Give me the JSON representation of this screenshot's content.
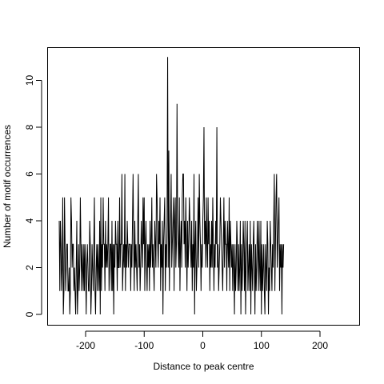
{
  "chart_data": {
    "type": "line",
    "title": "",
    "xlabel": "Distance to peak centre",
    "ylabel": "Number of motif occurrences",
    "xlim": [
      -250,
      250
    ],
    "ylim": [
      0,
      11
    ],
    "xticks": [
      -200,
      -100,
      0,
      100,
      200
    ],
    "yticks": [
      0,
      2,
      4,
      6,
      8,
      10
    ],
    "xtick_labels": [
      "-200",
      "-100",
      "0",
      "100",
      "200"
    ],
    "ytick_labels": [
      "0",
      "2",
      "4",
      "6",
      "8",
      "10"
    ],
    "grid": false,
    "line_color": "#000000",
    "x_start": -245,
    "x_step": 1,
    "values": [
      4,
      1,
      4,
      3,
      1,
      2,
      5,
      0,
      1,
      5,
      3,
      1,
      2,
      3,
      3,
      1,
      1,
      2,
      0,
      1,
      5,
      4,
      2,
      3,
      3,
      1,
      2,
      1,
      0,
      2,
      4,
      0,
      1,
      3,
      1,
      2,
      5,
      3,
      1,
      3,
      2,
      1,
      3,
      1,
      3,
      2,
      0,
      2,
      3,
      2,
      1,
      1,
      4,
      3,
      0,
      1,
      3,
      2,
      1,
      3,
      5,
      1,
      0,
      2,
      3,
      1,
      3,
      2,
      1,
      4,
      0,
      5,
      1,
      3,
      2,
      5,
      3,
      3,
      1,
      4,
      2,
      3,
      2,
      3,
      5,
      1,
      2,
      3,
      3,
      1,
      4,
      1,
      3,
      0,
      3,
      2,
      4,
      3,
      3,
      1,
      4,
      2,
      2,
      5,
      2,
      3,
      3,
      6,
      1,
      2,
      3,
      2,
      6,
      1,
      3,
      2,
      4,
      3,
      2,
      3,
      3,
      3,
      1,
      3,
      2,
      4,
      6,
      3,
      1,
      4,
      2,
      3,
      2,
      1,
      4,
      6,
      2,
      3,
      1,
      2,
      4,
      3,
      2,
      5,
      3,
      5,
      1,
      3,
      4,
      2,
      1,
      3,
      2,
      3,
      1,
      4,
      2,
      3,
      5,
      2,
      3,
      2,
      1,
      4,
      3,
      2,
      6,
      5,
      3,
      2,
      4,
      3,
      5,
      1,
      3,
      2,
      4,
      0,
      3,
      4,
      5,
      1,
      3,
      2,
      4,
      11,
      2,
      7,
      1,
      3,
      4,
      6,
      2,
      3,
      4,
      5,
      1,
      4,
      5,
      2,
      3,
      9,
      4,
      3,
      2,
      5,
      1,
      3,
      4,
      2,
      5,
      6,
      6,
      3,
      4,
      2,
      5,
      3,
      1,
      4,
      2,
      3,
      5,
      4,
      3,
      2,
      4,
      1,
      3,
      2,
      6,
      0,
      3,
      4,
      1,
      2,
      3,
      5,
      2,
      6,
      4,
      3,
      1,
      3,
      2,
      4,
      5,
      8,
      3,
      4,
      2,
      5,
      3,
      2,
      5,
      3,
      4,
      1,
      3,
      2,
      4,
      2,
      5,
      3,
      1,
      3,
      2,
      4,
      3,
      8,
      2,
      3,
      1,
      2,
      3,
      5,
      4,
      3,
      2,
      1,
      3,
      5,
      2,
      4,
      3,
      3,
      1,
      4,
      3,
      2,
      5,
      1,
      4,
      3,
      2,
      3,
      1,
      3,
      2,
      0,
      3,
      1,
      2,
      4,
      3,
      1,
      3,
      1,
      2,
      4,
      0,
      3,
      1,
      2,
      4,
      3,
      1,
      4,
      0,
      2,
      3,
      4,
      1,
      2,
      3,
      1,
      4,
      0,
      3,
      2,
      1,
      3,
      4,
      2,
      0,
      3,
      1,
      2,
      4,
      3,
      1,
      4,
      2,
      1,
      4,
      0,
      3,
      1,
      2,
      3,
      1,
      0,
      3,
      2,
      1,
      4,
      3,
      0,
      2,
      1,
      4,
      3,
      2,
      1,
      3,
      2,
      4,
      6,
      1,
      3,
      5,
      6,
      2,
      3,
      4,
      5,
      1,
      3,
      2,
      3,
      0,
      3,
      2,
      3
    ]
  }
}
